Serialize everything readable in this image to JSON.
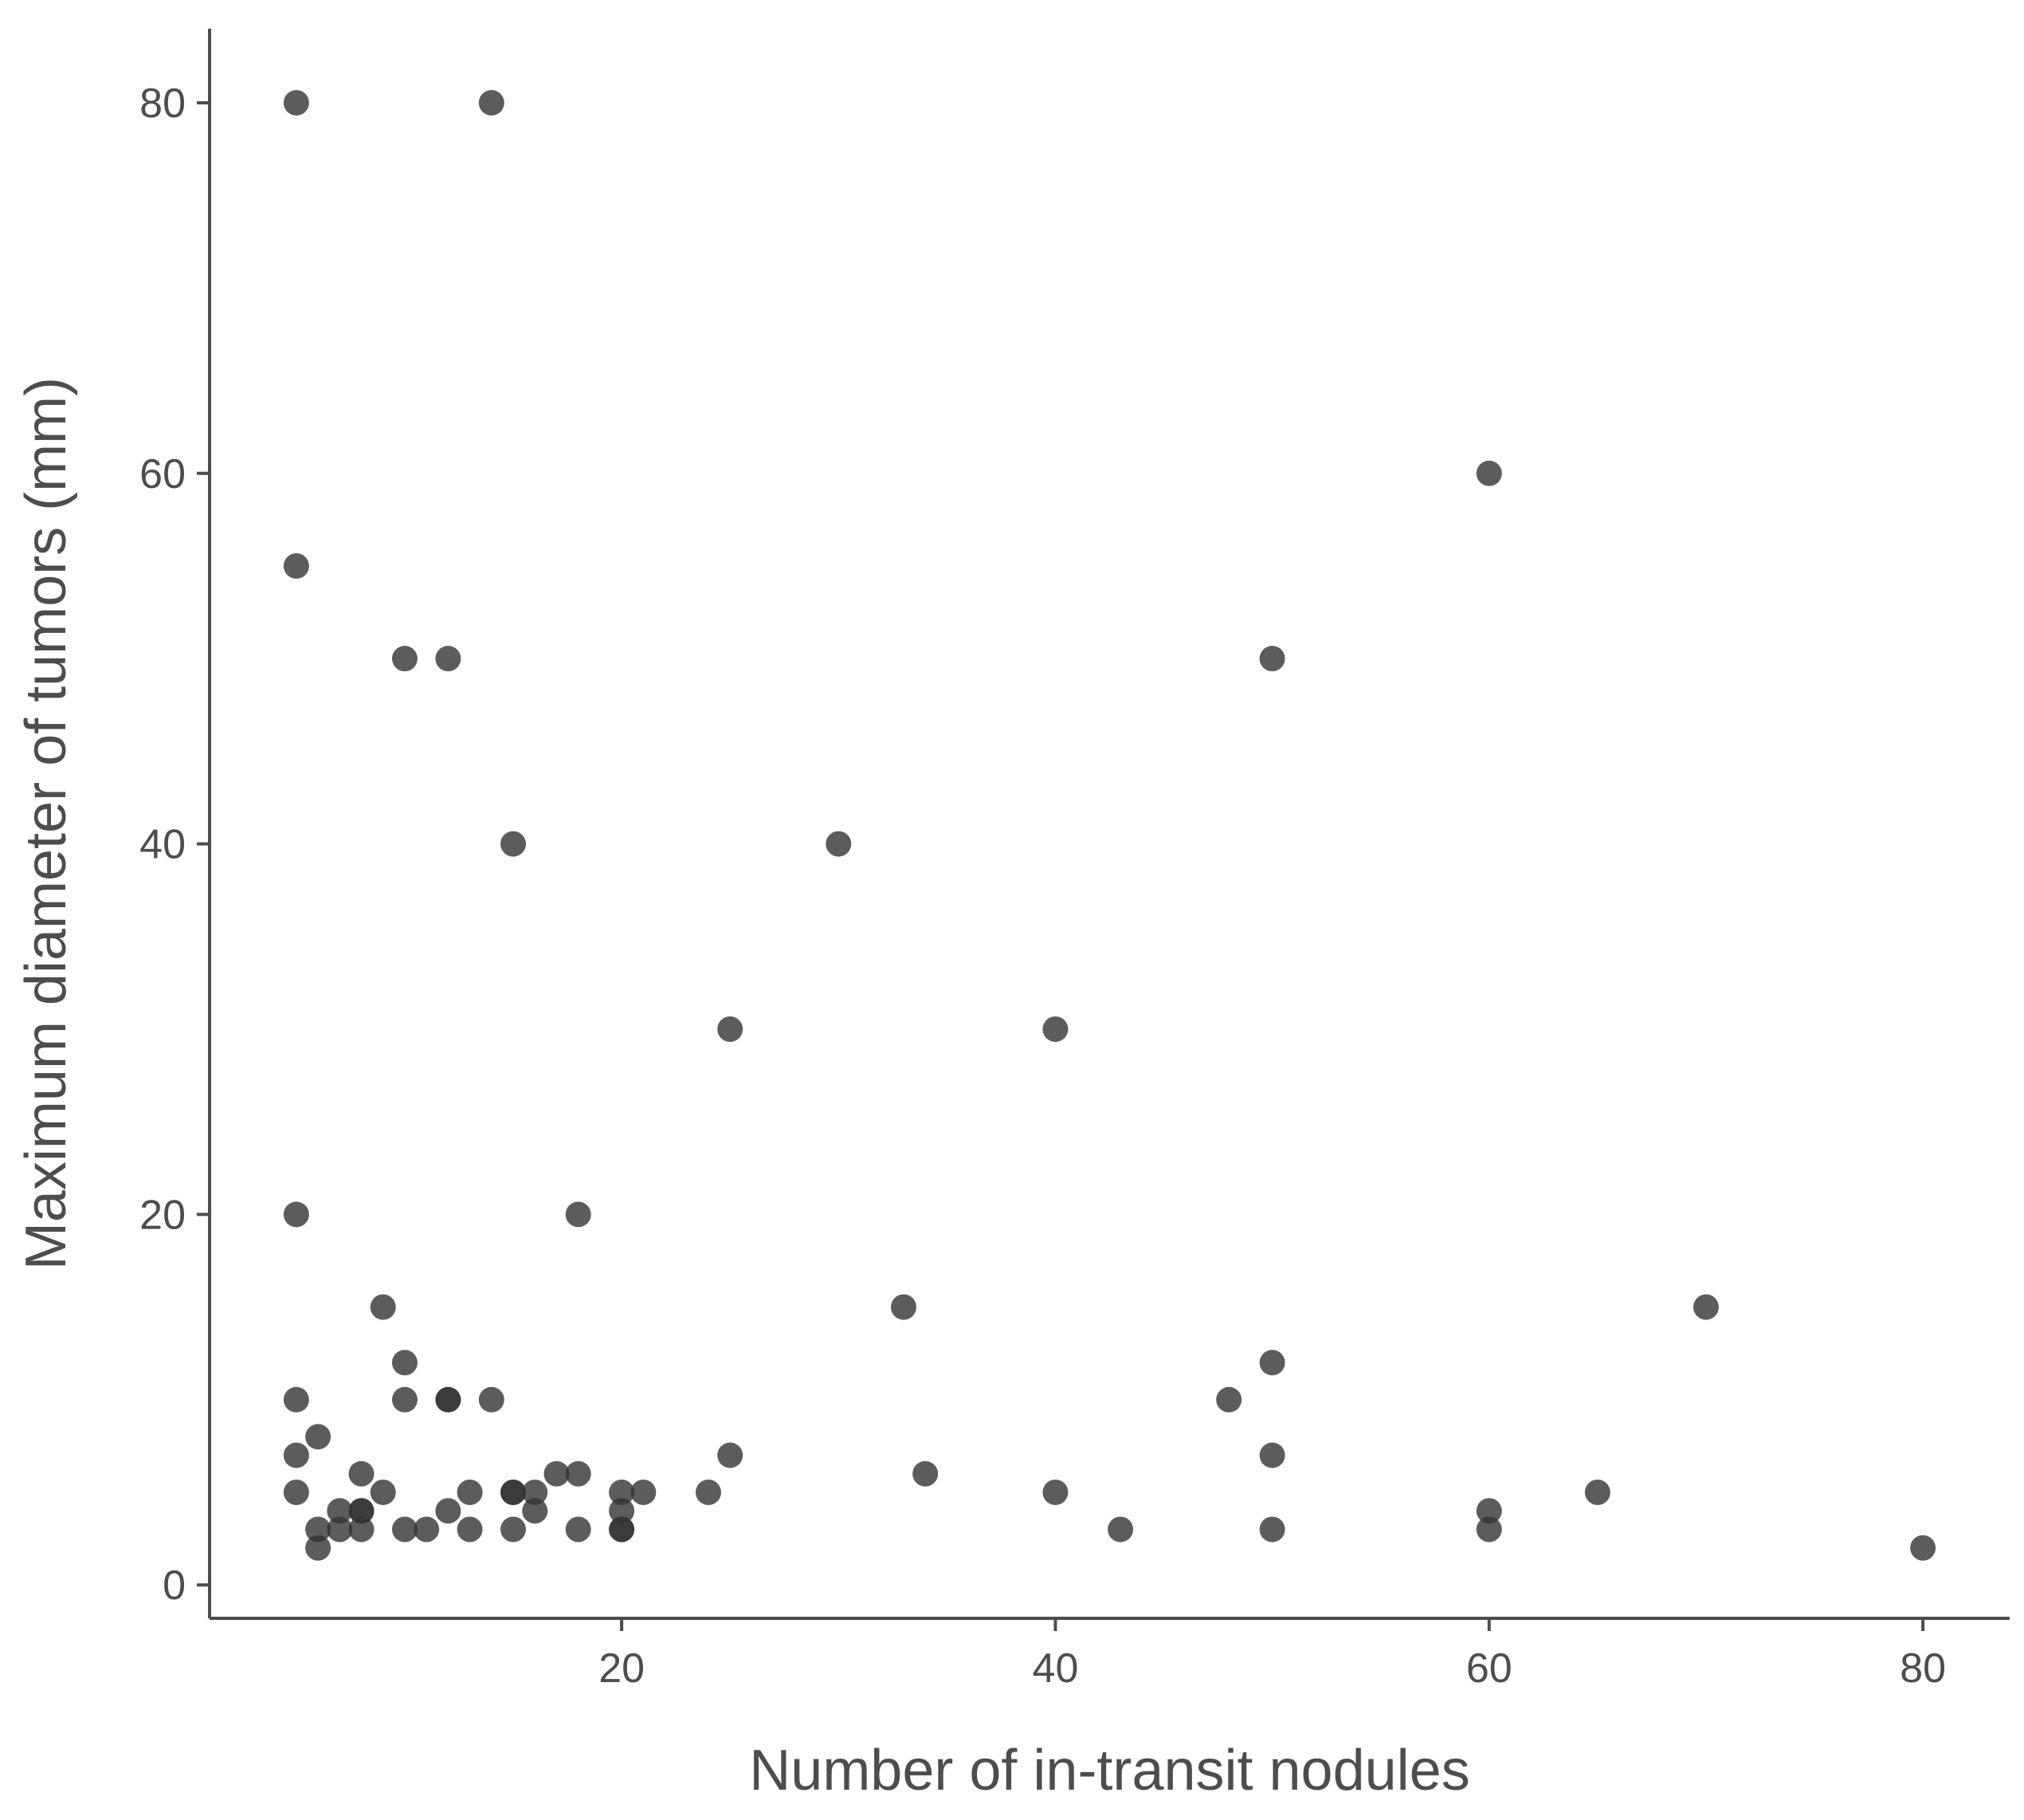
{
  "chart_data": {
    "type": "scatter",
    "title": "",
    "xlabel": "Number of in-transit nodules",
    "ylabel": "Maximum diameter of tumors (mm)",
    "xlim": [
      1,
      84
    ],
    "ylim": [
      -1.8,
      84
    ],
    "x_ticks": [
      20,
      40,
      60,
      80
    ],
    "y_ticks": [
      0,
      20,
      40,
      60,
      80
    ],
    "x_tick_labels": [
      "20",
      "40",
      "60",
      "80"
    ],
    "y_tick_labels": [
      "0",
      "20",
      "40",
      "60",
      "80"
    ],
    "grid": false,
    "legend": "none",
    "point_color": "#333333",
    "point_opacity": 0.8,
    "axis_color": "#4d4d4d",
    "series": [
      {
        "x": [
          5,
          5,
          5,
          5,
          5,
          5,
          6,
          6,
          6,
          7,
          7,
          8,
          8,
          8,
          8,
          9,
          9,
          10,
          10,
          10,
          10,
          11,
          12,
          12,
          12,
          12,
          13,
          13,
          14,
          14,
          15,
          15,
          15,
          15,
          16,
          16,
          17,
          18,
          18,
          18,
          20,
          20,
          20,
          20,
          21,
          24,
          25,
          25,
          30,
          33,
          34,
          40,
          40,
          43,
          48,
          50,
          50,
          50,
          50,
          60,
          60,
          60,
          65,
          70,
          80
        ],
        "y": [
          80,
          55,
          20,
          10,
          7,
          5,
          8,
          3,
          2,
          4,
          3,
          6,
          4,
          4,
          3,
          15,
          5,
          50,
          12,
          10,
          3,
          3,
          50,
          10,
          10,
          4,
          5,
          3,
          80,
          10,
          40,
          5,
          5,
          3,
          5,
          4,
          6,
          20,
          6,
          3,
          5,
          4,
          3,
          3,
          5,
          5,
          30,
          7,
          40,
          15,
          6,
          30,
          5,
          3,
          10,
          50,
          12,
          7,
          3,
          60,
          4,
          3,
          5,
          15,
          2
        ]
      }
    ]
  }
}
